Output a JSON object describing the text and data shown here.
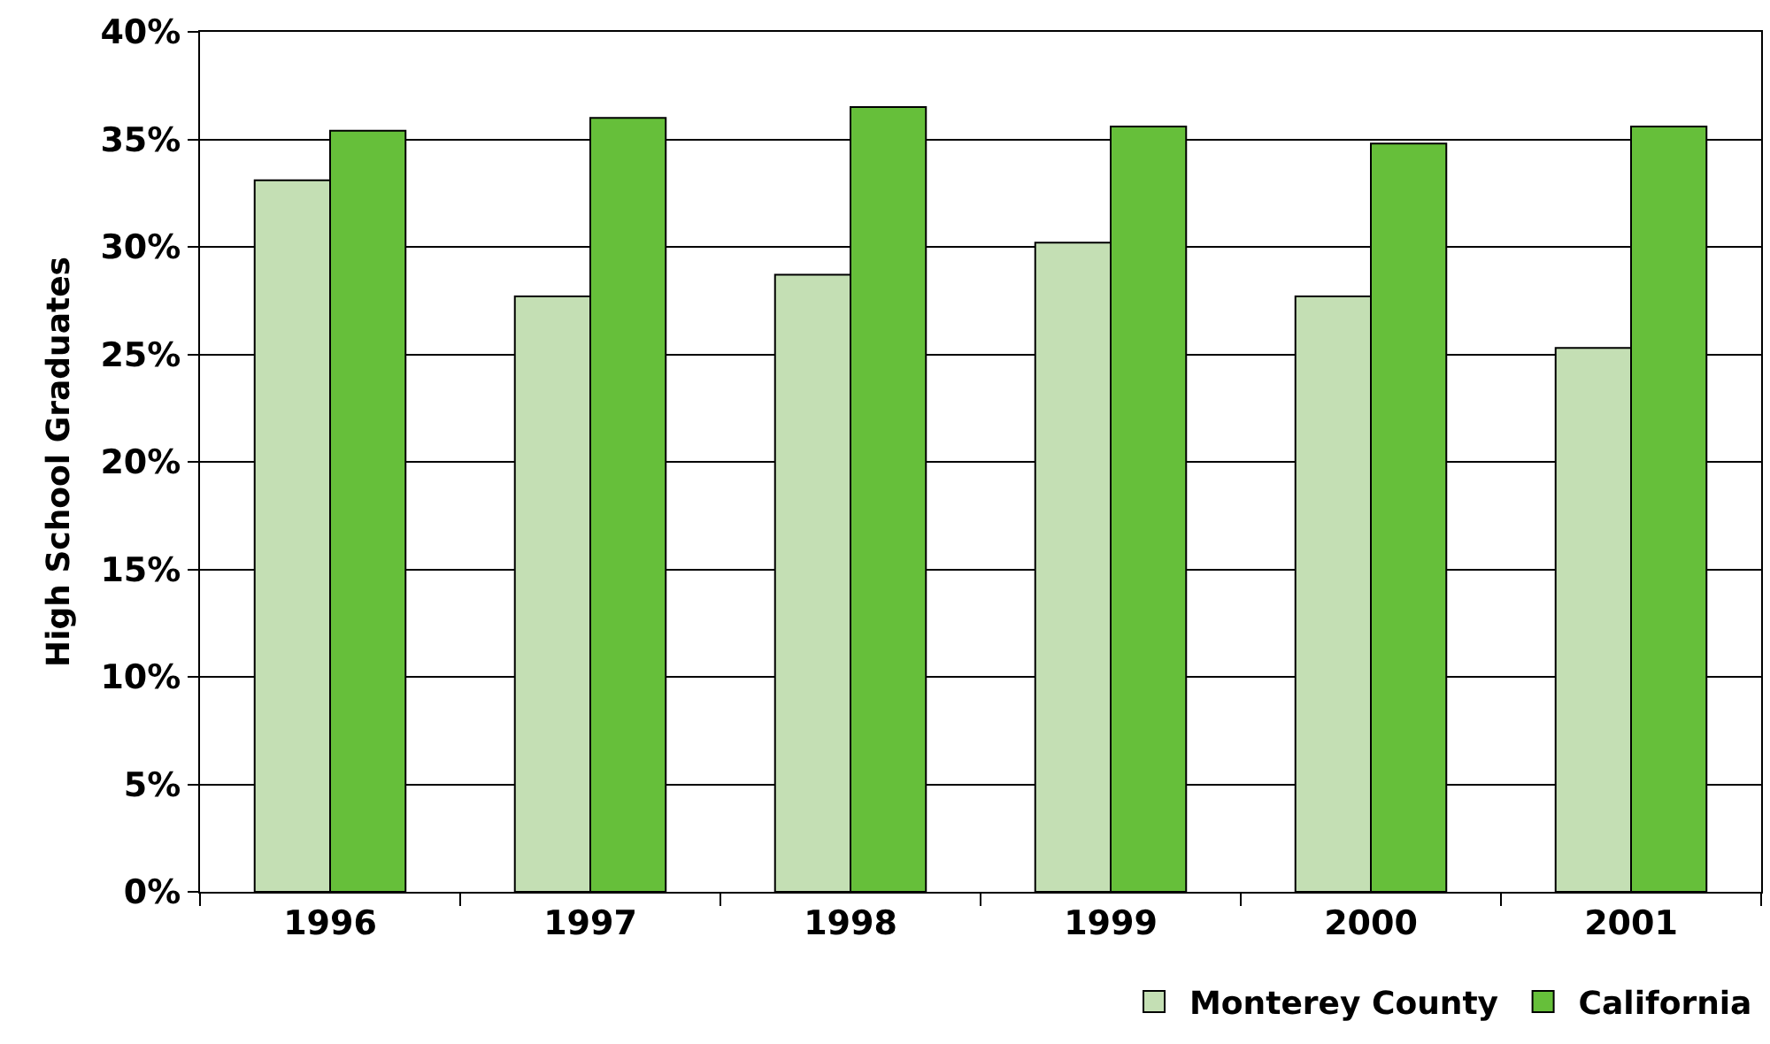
{
  "chart_data": {
    "type": "bar",
    "ylabel": "High School Graduates",
    "categories": [
      "1996",
      "1997",
      "1998",
      "1999",
      "2000",
      "2001"
    ],
    "series": [
      {
        "name": "Monterey County",
        "color": "#c4dfb4",
        "values": [
          33.1,
          27.7,
          28.7,
          30.2,
          27.7,
          25.3
        ]
      },
      {
        "name": "California",
        "color": "#66bf3a",
        "values": [
          35.4,
          36.0,
          36.5,
          35.6,
          34.8,
          35.6
        ]
      }
    ],
    "ylim": [
      0,
      40
    ],
    "yticks": [
      {
        "value": 0,
        "label": "0%"
      },
      {
        "value": 5,
        "label": "5%"
      },
      {
        "value": 10,
        "label": "10%"
      },
      {
        "value": 15,
        "label": "15%"
      },
      {
        "value": 20,
        "label": "20%"
      },
      {
        "value": 25,
        "label": "25%"
      },
      {
        "value": 30,
        "label": "30%"
      },
      {
        "value": 35,
        "label": "35%"
      },
      {
        "value": 40,
        "label": "40%"
      }
    ],
    "grid": "y",
    "legend": "bottom right"
  }
}
